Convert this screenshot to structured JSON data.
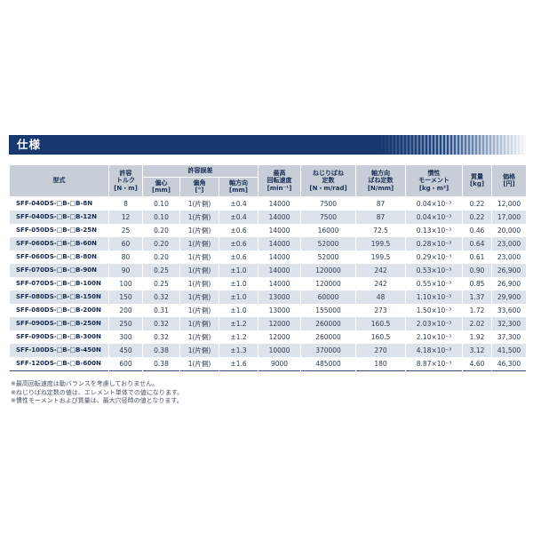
{
  "page": {
    "section_title": "仕様",
    "accent_color": "#16386e",
    "header_bg_color": "#c7ced7",
    "row_alt_color": "#dde3eb"
  },
  "table": {
    "headers": {
      "model": "型式",
      "torque": "許容\nトルク\n[N・m]",
      "tolerance_group": "許容誤差",
      "eccentricity": "偏心\n[mm]",
      "angular": "偏角\n[°]",
      "axial": "軸方向\n[mm]",
      "max_speed": "最高\n回転速度\n[min⁻¹]",
      "torsional_spring": "ねじりばね\n定数\n[N・m/rad]",
      "axial_spring": "軸方向\nばね定数\n[N/mm]",
      "inertia": "慣性\nモーメント\n[kg・m²]",
      "mass": "質量\n[kg]",
      "price": "価格\n[円]"
    },
    "rows": [
      [
        "SFF-040DS-□B-□B-8N",
        "8",
        "0.10",
        "1(片側)",
        "±0.4",
        "14000",
        "7500",
        "87",
        "0.04×10⁻³",
        "0.22",
        "12,000"
      ],
      [
        "SFF-040DS-□B-□B-12N",
        "12",
        "0.10",
        "1(片側)",
        "±0.4",
        "14000",
        "7500",
        "87",
        "0.04×10⁻³",
        "0.22",
        "17,000"
      ],
      [
        "SFF-050DS-□B-□B-25N",
        "25",
        "0.20",
        "1(片側)",
        "±0.6",
        "14000",
        "16000",
        "72.5",
        "0.13×10⁻³",
        "0.46",
        "20,000"
      ],
      [
        "SFF-060DS-□B-□B-60N",
        "60",
        "0.20",
        "1(片側)",
        "±0.6",
        "14000",
        "52000",
        "199.5",
        "0.28×10⁻³",
        "0.64",
        "23,000"
      ],
      [
        "SFF-060DS-□B-□B-80N",
        "80",
        "0.20",
        "1(片側)",
        "±0.6",
        "14000",
        "52000",
        "199.5",
        "0.29×10⁻³",
        "0.61",
        "23,000"
      ],
      [
        "SFF-070DS-□B-□B-90N",
        "90",
        "0.25",
        "1(片側)",
        "±1.0",
        "14000",
        "120000",
        "242",
        "0.53×10⁻³",
        "0.90",
        "26,900"
      ],
      [
        "SFF-070DS-□B-□B-100N",
        "100",
        "0.25",
        "1(片側)",
        "±1.0",
        "14000",
        "120000",
        "242",
        "0.55×10⁻³",
        "0.85",
        "26,900"
      ],
      [
        "SFF-080DS-□B-□B-150N",
        "150",
        "0.32",
        "1(片側)",
        "±1.0",
        "13000",
        "60000",
        "48",
        "1.10×10⁻³",
        "1.37",
        "29,900"
      ],
      [
        "SFF-080DS-□B-□B-200N",
        "200",
        "0.31",
        "1(片側)",
        "±1.0",
        "13000",
        "155000",
        "273",
        "1.50×10⁻³",
        "1.72",
        "33,600"
      ],
      [
        "SFF-090DS-□B-□B-250N",
        "250",
        "0.32",
        "1(片側)",
        "±1.2",
        "12000",
        "260000",
        "160.5",
        "2.03×10⁻³",
        "2.02",
        "32,300"
      ],
      [
        "SFF-090DS-□B-□B-300N",
        "300",
        "0.32",
        "1(片側)",
        "±1.2",
        "12000",
        "260000",
        "160.5",
        "2.10×10⁻³",
        "1.92",
        "37,300"
      ],
      [
        "SFF-100DS-□B-□B-450N",
        "450",
        "0.38",
        "1(片側)",
        "±1.3",
        "10000",
        "370000",
        "270",
        "4.18×10⁻³",
        "3.12",
        "41,500"
      ],
      [
        "SFF-120DS-□B-□B-600N",
        "600",
        "0.38",
        "1(片側)",
        "±1.6",
        "9000",
        "485000",
        "180",
        "8.87×10⁻³",
        "4.60",
        "46,300"
      ]
    ]
  },
  "notes": [
    "※最高回転速度は動バランスを考慮しておりません。",
    "※ねじりばね定数の値は、エレメント単体での値になります。",
    "※慣性モーメントおよび質量は、最大穴径時の値となります。"
  ]
}
